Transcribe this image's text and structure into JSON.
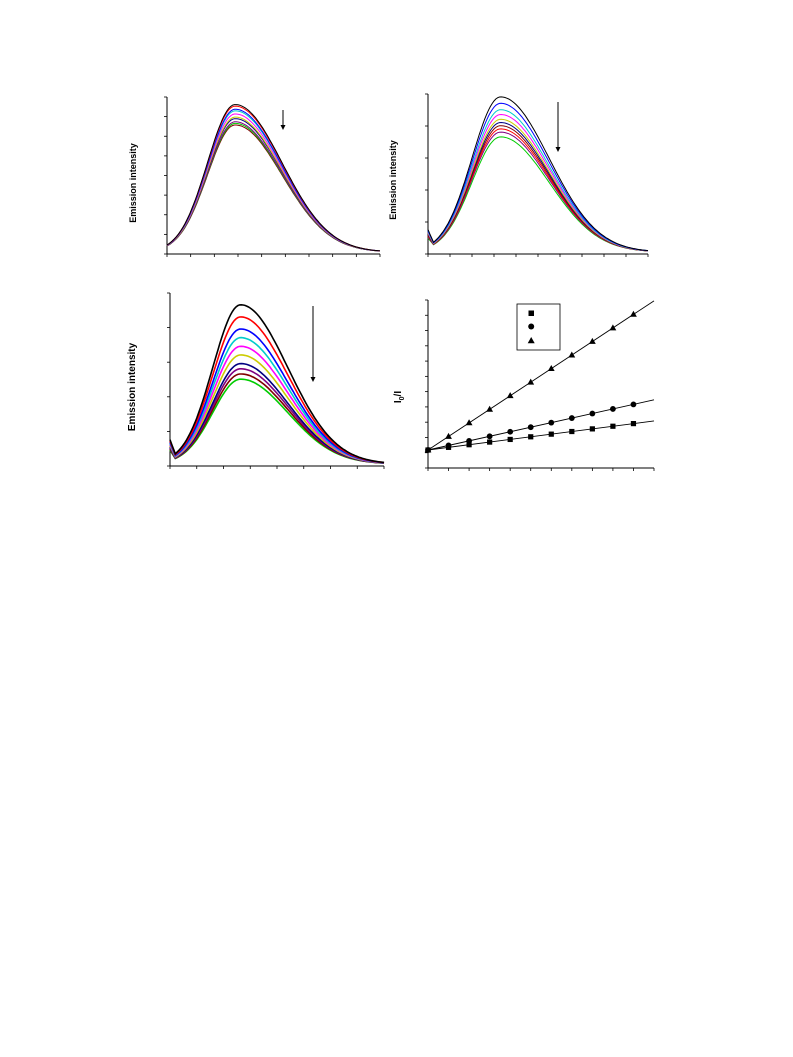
{
  "chart_data": [
    {
      "type": "line",
      "panel": "top-left",
      "ylabel": "Emission intensity",
      "xlabel": "",
      "x_ticks": 9,
      "y_ticks": 8,
      "peak_position": 0.32,
      "arrow": "down",
      "series": [
        {
          "color": "#000000",
          "peak": 0.94
        },
        {
          "color": "#ff0000",
          "peak": 0.93
        },
        {
          "color": "#0000ff",
          "peak": 0.91
        },
        {
          "color": "#00cccc",
          "peak": 0.9
        },
        {
          "color": "#ff00ff",
          "peak": 0.88
        },
        {
          "color": "#cccc00",
          "peak": 0.86
        },
        {
          "color": "#000080",
          "peak": 0.85
        },
        {
          "color": "#800080",
          "peak": 0.83
        },
        {
          "color": "#00cc00",
          "peak": 0.82
        },
        {
          "color": "#800000",
          "peak": 0.81
        }
      ]
    },
    {
      "type": "line",
      "panel": "top-right",
      "ylabel": "Emission intensity",
      "xlabel": "",
      "x_ticks": 10,
      "y_ticks": 5,
      "peak_position": 0.33,
      "arrow": "down",
      "series": [
        {
          "color": "#000000",
          "peak": 0.97
        },
        {
          "color": "#0000ff",
          "peak": 0.93
        },
        {
          "color": "#00cccc",
          "peak": 0.89
        },
        {
          "color": "#ff00ff",
          "peak": 0.86
        },
        {
          "color": "#cccc00",
          "peak": 0.83
        },
        {
          "color": "#000080",
          "peak": 0.81
        },
        {
          "color": "#800000",
          "peak": 0.79
        },
        {
          "color": "#ff0000",
          "peak": 0.77
        },
        {
          "color": "#800080",
          "peak": 0.75
        },
        {
          "color": "#00cc00",
          "peak": 0.72
        }
      ]
    },
    {
      "type": "line",
      "panel": "bottom-left",
      "ylabel": "Emission intensity",
      "xlabel": "",
      "x_ticks": 8,
      "y_ticks": 5,
      "peak_position": 0.33,
      "arrow": "down",
      "series": [
        {
          "color": "#000000",
          "peak": 0.92
        },
        {
          "color": "#ff0000",
          "peak": 0.85
        },
        {
          "color": "#0000ff",
          "peak": 0.78
        },
        {
          "color": "#00cccc",
          "peak": 0.73
        },
        {
          "color": "#ff00ff",
          "peak": 0.68
        },
        {
          "color": "#cccc00",
          "peak": 0.63
        },
        {
          "color": "#000080",
          "peak": 0.58
        },
        {
          "color": "#800080",
          "peak": 0.55
        },
        {
          "color": "#800000",
          "peak": 0.52
        },
        {
          "color": "#00cc00",
          "peak": 0.49
        }
      ]
    },
    {
      "type": "scatter",
      "panel": "bottom-right",
      "ylabel": "I0/I",
      "ylabel_main": "I",
      "ylabel_sub": "0",
      "ylabel_tail": "/I",
      "xlabel": "",
      "x": [
        0,
        1,
        2,
        3,
        4,
        5,
        6,
        7,
        8,
        9,
        10
      ],
      "xlim": [
        0,
        11
      ],
      "ylim": [
        0.85,
        2.25
      ],
      "legend_placement": "top-center",
      "series": [
        {
          "marker": "square",
          "slope": 0.022,
          "intercept": 1.0
        },
        {
          "marker": "circle",
          "slope": 0.038,
          "intercept": 1.0
        },
        {
          "marker": "triangle",
          "slope": 0.113,
          "intercept": 1.0
        }
      ]
    }
  ]
}
